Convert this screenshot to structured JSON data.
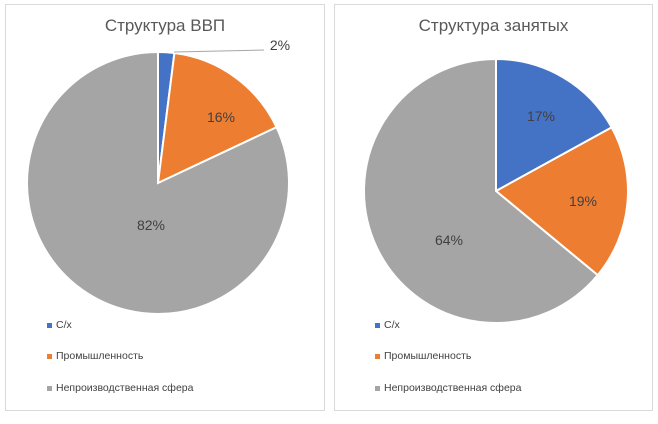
{
  "charts": [
    {
      "title": "Структура ВВП",
      "slices": [
        {
          "label": "С/х",
          "value": 2,
          "text": "2%",
          "color": "#4472c4"
        },
        {
          "label": "Промышленность",
          "value": 16,
          "text": "16%",
          "color": "#ed7d31"
        },
        {
          "label": "Непроизводственная сфера",
          "value": 82,
          "text": "82%",
          "color": "#a5a5a5"
        }
      ]
    },
    {
      "title": "Структура занятых",
      "slices": [
        {
          "label": "С/х",
          "value": 17,
          "text": "17%",
          "color": "#4472c4"
        },
        {
          "label": "Промышленность",
          "value": 19,
          "text": "19%",
          "color": "#ed7d31"
        },
        {
          "label": "Непроизводственная сфера",
          "value": 64,
          "text": "64%",
          "color": "#a5a5a5"
        }
      ]
    }
  ],
  "legend": [
    "С/х",
    "Промышленность",
    "Непроизводственная сфера"
  ],
  "chart_data": [
    {
      "type": "pie",
      "title": "Структура ВВП",
      "categories": [
        "С/х",
        "Промышленность",
        "Непроизводственная сфера"
      ],
      "values": [
        2,
        16,
        82
      ],
      "legend_position": "bottom-left"
    },
    {
      "type": "pie",
      "title": "Структура занятых",
      "categories": [
        "С/х",
        "Промышленность",
        "Непроизводственная сфера"
      ],
      "values": [
        17,
        19,
        64
      ],
      "legend_position": "bottom-left"
    }
  ]
}
